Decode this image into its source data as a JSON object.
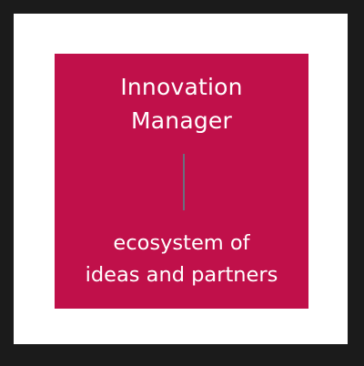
{
  "card": {
    "title_lines": [
      "Innovation",
      "Manager"
    ],
    "subtitle_lines": [
      "ecosystem of",
      "ideas and partners"
    ]
  },
  "colors": {
    "frame": "#1b1b1b",
    "mat": "#ffffff",
    "tile": "#c0104a",
    "text": "#ffffff",
    "divider": "#6a6f7e"
  }
}
